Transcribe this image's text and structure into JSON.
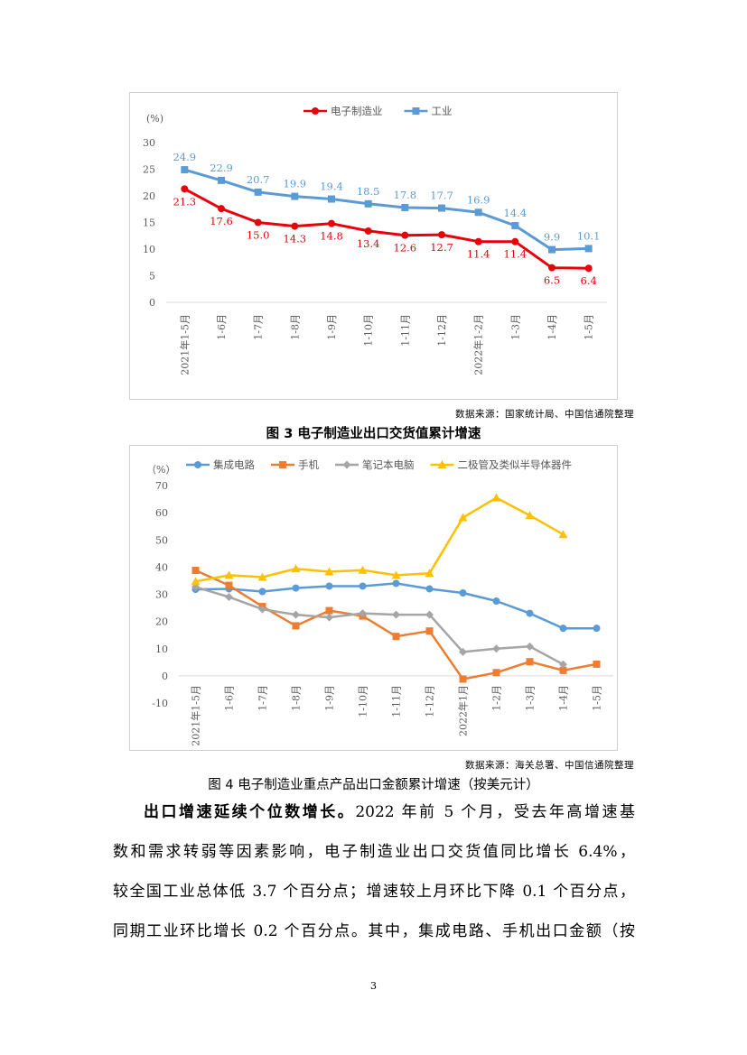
{
  "figure3": {
    "source": "数据来源：国家统计局、中国信通院整理",
    "caption": "图 3  电子制造业出口交货值累计增速",
    "chart_data": {
      "type": "line",
      "unit_label": "(%)",
      "categories": [
        "2021年1-5月",
        "1-6月",
        "1-7月",
        "1-8月",
        "1-9月",
        "1-10月",
        "1-11月",
        "1-12月",
        "2022年1-2月",
        "1-3月",
        "1-4月",
        "1-5月"
      ],
      "ylim": [
        0,
        30
      ],
      "yticks": [
        0,
        5,
        10,
        15,
        20,
        25,
        30
      ],
      "legend_position": "top",
      "series": [
        {
          "name": "电子制造业",
          "color": "#e8000b",
          "marker": "circle",
          "label_pos": "below",
          "values": [
            21.3,
            17.6,
            15.0,
            14.3,
            14.8,
            13.4,
            12.6,
            12.7,
            11.4,
            11.4,
            6.5,
            6.4
          ],
          "labels": [
            "21.3",
            "17.6",
            "15.0",
            "14.3",
            "14.8",
            "13.4",
            "12.6",
            "12.7",
            "11.4",
            "11.4",
            "6.5",
            "6.4"
          ]
        },
        {
          "name": "工业",
          "color": "#5b9bd5",
          "marker": "square",
          "label_pos": "above",
          "values": [
            24.9,
            22.9,
            20.7,
            19.9,
            19.4,
            18.5,
            17.8,
            17.7,
            16.9,
            14.4,
            9.9,
            10.1
          ],
          "labels": [
            "24.9",
            "22.9",
            "20.7",
            "19.9",
            "19.4",
            "18.5",
            "17.8",
            "17.7",
            "16.9",
            "14.4",
            "9.9",
            "10.1"
          ]
        }
      ]
    }
  },
  "figure4": {
    "source": "数据来源：海关总署、中国信通院整理",
    "caption": "图 4  电子制造业重点产品出口金额累计增速（按美元计）",
    "chart_data": {
      "type": "line",
      "unit_label": "（%）",
      "categories": [
        "2021年1-5月",
        "1-6月",
        "1-7月",
        "1-8月",
        "1-9月",
        "1-10月",
        "1-11月",
        "1-12月",
        "2022年1月",
        "1-2月",
        "1-3月",
        "1-4月",
        "1-5月"
      ],
      "ylim": [
        -10,
        70
      ],
      "yticks": [
        -10,
        0,
        10,
        20,
        30,
        40,
        50,
        60,
        70
      ],
      "legend_position": "top",
      "series": [
        {
          "name": "集成电路",
          "color": "#5b9bd5",
          "marker": "circle",
          "values": [
            31.8,
            32.0,
            31.0,
            32.3,
            33.0,
            33.0,
            34.0,
            32.0,
            30.5,
            27.5,
            23.0,
            17.5,
            17.5
          ]
        },
        {
          "name": "手机",
          "color": "#ed7d31",
          "marker": "square",
          "values": [
            38.8,
            33.3,
            25.5,
            18.4,
            24.0,
            22.0,
            14.5,
            16.5,
            -1.2,
            1.2,
            5.2,
            2.0,
            4.3
          ]
        },
        {
          "name": "笔记本电脑",
          "color": "#a5a5a5",
          "marker": "diamond",
          "values": [
            32.7,
            29.0,
            24.5,
            22.5,
            21.5,
            23.0,
            22.5,
            22.5,
            8.8,
            10.0,
            10.8,
            4.2,
            null
          ]
        },
        {
          "name": "二极管及类似半导体器件",
          "color": "#ffc000",
          "marker": "triangle",
          "values": [
            34.7,
            37.0,
            36.3,
            39.4,
            38.3,
            38.9,
            37.0,
            37.7,
            58.2,
            65.5,
            59.0,
            52.0,
            null
          ]
        }
      ]
    }
  },
  "paragraph": {
    "lead": "出口增速延续个位数增长。",
    "line1_rest": "2022 年前 5 个月，受去年高增速基",
    "line2": "数和需求转弱等因素影响，电子制造业出口交货值同比增长 6.4%，",
    "line3": "较全国工业总体低 3.7 个百分点；增速较上月环比下降 0.1 个百分点，",
    "line4": "同期工业环比增长 0.2 个百分点。其中，集成电路、手机出口金额（按"
  },
  "page_number": "3"
}
